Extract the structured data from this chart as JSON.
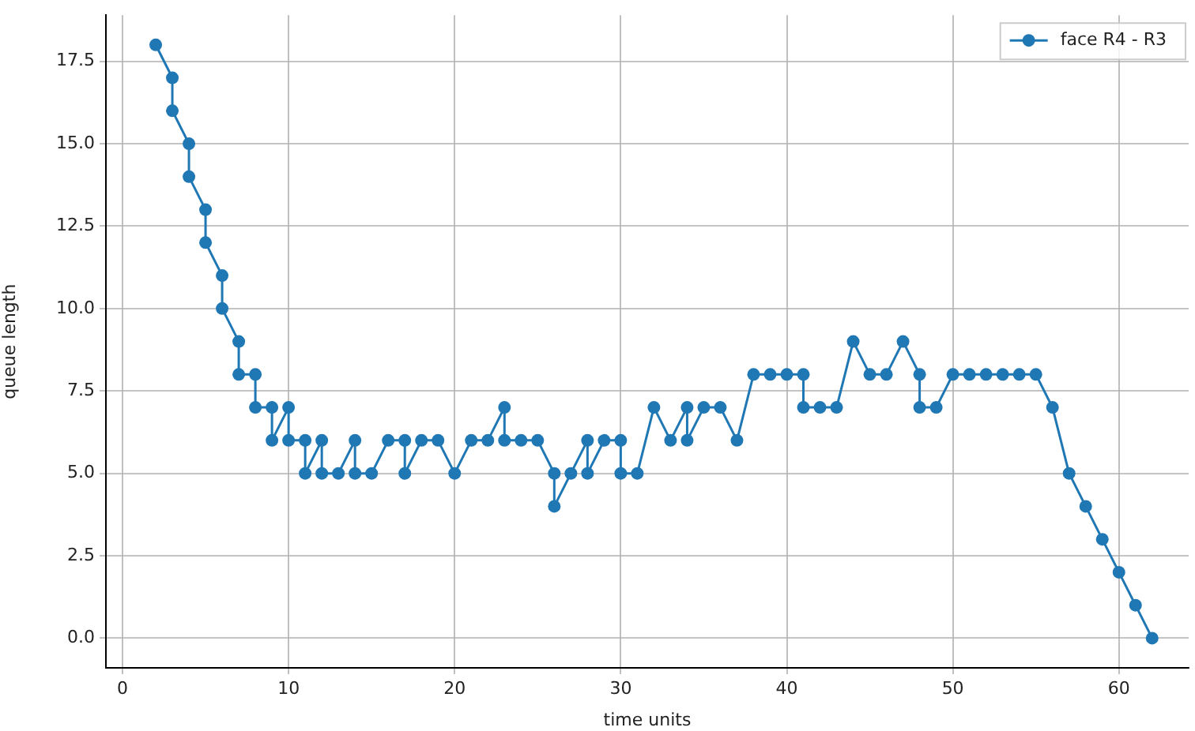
{
  "chart_data": {
    "type": "line",
    "xlabel": "time units",
    "ylabel": "queue length",
    "xlim": [
      -1,
      64.2
    ],
    "ylim": [
      -0.9,
      18.9
    ],
    "xticks": [
      0,
      10,
      20,
      30,
      40,
      50,
      60
    ],
    "yticks": [
      {
        "value": 0,
        "label": "0.0"
      },
      {
        "value": 2.5,
        "label": "2.5"
      },
      {
        "value": 5,
        "label": "5.0"
      },
      {
        "value": 7.5,
        "label": "7.5"
      },
      {
        "value": 10,
        "label": "10.0"
      },
      {
        "value": 12.5,
        "label": "12.5"
      },
      {
        "value": 15,
        "label": "15.0"
      },
      {
        "value": 17.5,
        "label": "17.5"
      }
    ],
    "grid": true,
    "legend": "top right",
    "marker": "circle",
    "line_style": "solid",
    "series": [
      {
        "name": "face R4 - R3",
        "color": "#1f77b4",
        "x": [
          2,
          3,
          3,
          4,
          4,
          5,
          5,
          6,
          6,
          7,
          7,
          8,
          8,
          9,
          9,
          10,
          10,
          11,
          11,
          12,
          12,
          13,
          14,
          14,
          15,
          16,
          17,
          17,
          18,
          19,
          20,
          21,
          22,
          23,
          23,
          24,
          25,
          26,
          26,
          27,
          28,
          28,
          29,
          30,
          30,
          31,
          32,
          33,
          34,
          34,
          35,
          36,
          37,
          38,
          39,
          40,
          41,
          41,
          42,
          43,
          44,
          45,
          46,
          47,
          48,
          48,
          49,
          50,
          51,
          52,
          53,
          54,
          55,
          56,
          57,
          58,
          59,
          60,
          61,
          62
        ],
        "values": [
          18,
          17,
          16,
          15,
          14,
          13,
          12,
          11,
          10,
          9,
          8,
          8,
          7,
          7,
          6,
          7,
          6,
          6,
          5,
          6,
          5,
          5,
          6,
          5,
          5,
          6,
          6,
          5,
          6,
          6,
          5,
          6,
          6,
          7,
          6,
          6,
          6,
          5,
          4,
          5,
          6,
          5,
          6,
          6,
          5,
          5,
          7,
          6,
          7,
          6,
          7,
          7,
          6,
          8,
          8,
          8,
          8,
          7,
          7,
          7,
          9,
          8,
          8,
          9,
          8,
          7,
          7,
          8,
          8,
          8,
          8,
          8,
          8,
          7,
          5,
          4,
          3,
          2,
          1,
          0
        ]
      }
    ]
  }
}
